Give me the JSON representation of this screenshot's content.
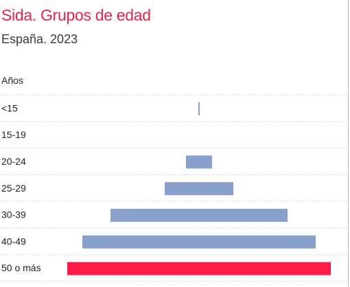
{
  "chart_data": {
    "type": "bar",
    "orientation": "horizontal-population-pyramid",
    "title": "Sida. Grupos de edad",
    "subtitle": "España. 2023",
    "ylabel": "Años",
    "categories": [
      "<15",
      "15-19",
      "20-24",
      "25-29",
      "30-39",
      "40-49",
      "50 o más"
    ],
    "values": [
      1,
      0,
      19,
      50,
      129,
      170,
      192
    ],
    "colors": [
      "#88a0cc",
      "#88a0cc",
      "#88a0cc",
      "#88a0cc",
      "#88a0cc",
      "#88a0cc",
      "#ff1a45"
    ],
    "grid": true
  }
}
